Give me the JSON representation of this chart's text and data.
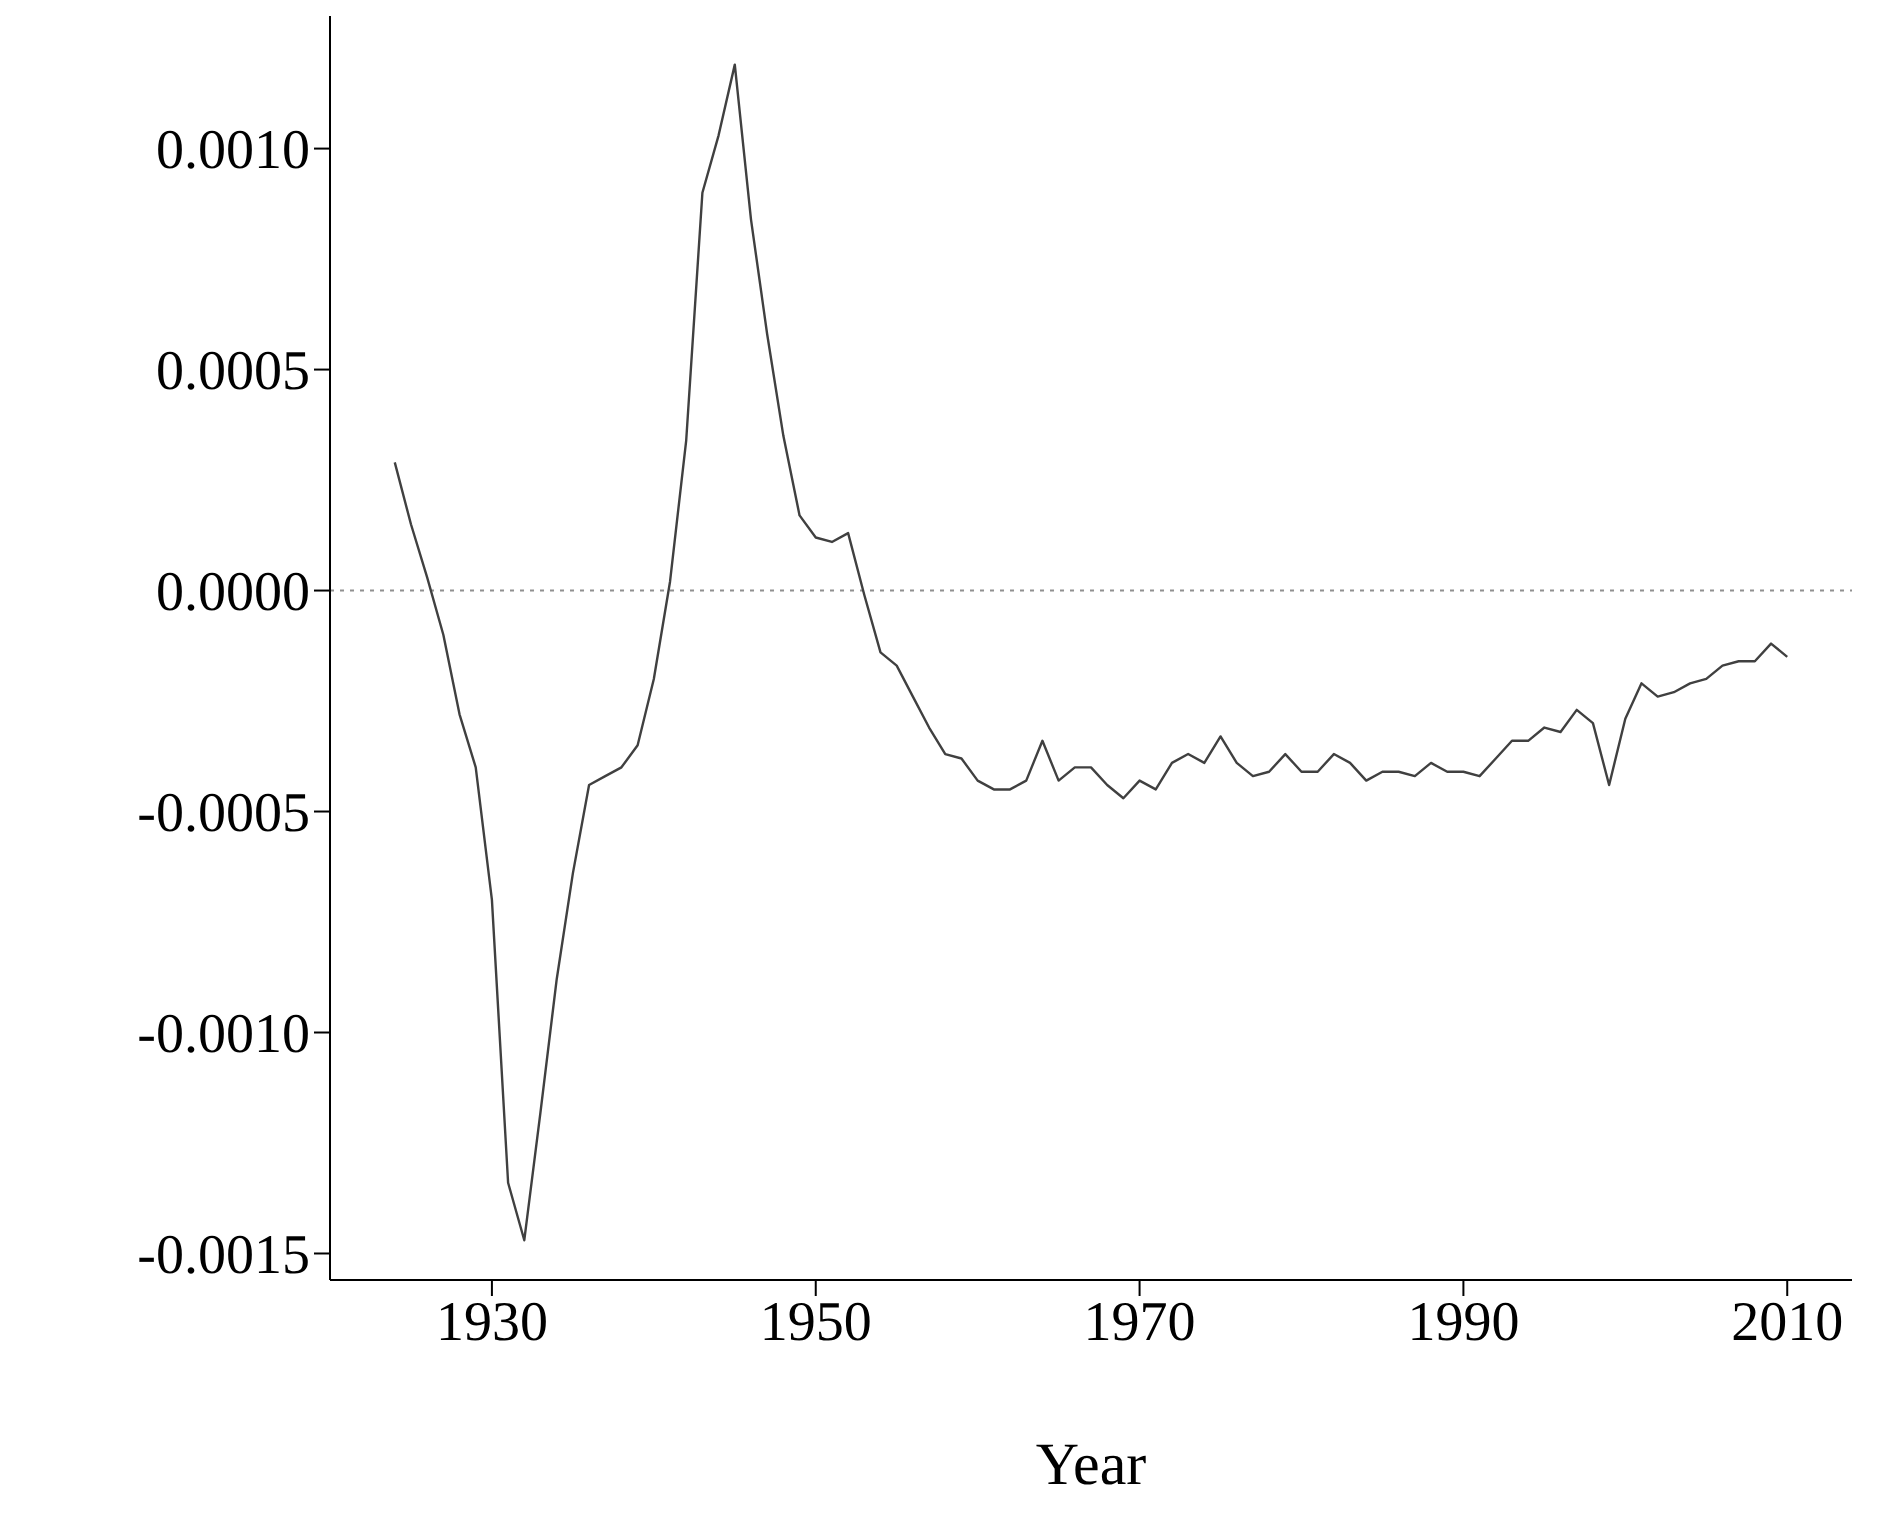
{
  "chart_data": {
    "type": "line",
    "xlabel": "Year",
    "x": [
      1924,
      1925,
      1926,
      1927,
      1928,
      1929,
      1930,
      1931,
      1932,
      1933,
      1934,
      1935,
      1936,
      1937,
      1938,
      1939,
      1940,
      1941,
      1942,
      1943,
      1944,
      1945,
      1946,
      1947,
      1948,
      1949,
      1950,
      1951,
      1952,
      1953,
      1954,
      1955,
      1956,
      1957,
      1958,
      1959,
      1960,
      1961,
      1962,
      1963,
      1964,
      1965,
      1966,
      1967,
      1968,
      1969,
      1970,
      1971,
      1972,
      1973,
      1974,
      1975,
      1976,
      1977,
      1978,
      1979,
      1980,
      1981,
      1982,
      1983,
      1984,
      1985,
      1986,
      1987,
      1988,
      1989,
      1990,
      1991,
      1992,
      1993,
      1994,
      1995,
      1996,
      1997,
      1998,
      1999,
      2000,
      2001,
      2002,
      2003,
      2004,
      2005,
      2006,
      2007,
      2008,
      2009,
      2010
    ],
    "series": [
      {
        "color": "#404040",
        "values": [
          0.00029,
          0.00015,
          3e-05,
          -0.0001,
          -0.00028,
          -0.0004,
          -0.0007,
          -0.00134,
          -0.00147,
          -0.00118,
          -0.00088,
          -0.00064,
          -0.00044,
          -0.00042,
          -0.0004,
          -0.00035,
          -0.0002,
          2e-05,
          0.00034,
          0.0009,
          0.00103,
          0.00119,
          0.00084,
          0.00058,
          0.00035,
          0.00017,
          0.00012,
          0.00011,
          0.00013,
          -1e-05,
          -0.00014,
          -0.00017,
          -0.00024,
          -0.00031,
          -0.00037,
          -0.00038,
          -0.00043,
          -0.00045,
          -0.00045,
          -0.00043,
          -0.00034,
          -0.00043,
          -0.0004,
          -0.0004,
          -0.00044,
          -0.00047,
          -0.00043,
          -0.00045,
          -0.00039,
          -0.00037,
          -0.00039,
          -0.00033,
          -0.00039,
          -0.00042,
          -0.00041,
          -0.00037,
          -0.00041,
          -0.00041,
          -0.00037,
          -0.00039,
          -0.00043,
          -0.00041,
          -0.00041,
          -0.00042,
          -0.00039,
          -0.00041,
          -0.00041,
          -0.00042,
          -0.00038,
          -0.00034,
          -0.00034,
          -0.00031,
          -0.00032,
          -0.00027,
          -0.0003,
          -0.00044,
          -0.00029,
          -0.00021,
          -0.00024,
          -0.00023,
          -0.00021,
          -0.0002,
          -0.00017,
          -0.00016,
          -0.00016,
          -0.00012,
          -0.00015
        ]
      }
    ],
    "xlim": [
      1920,
      2014
    ],
    "xticks": [
      1930,
      1950,
      1970,
      1990,
      2010
    ],
    "ylim": [
      -0.00156,
      0.0013
    ],
    "yticks": [
      {
        "value": -0.0015,
        "label": "-0.0015"
      },
      {
        "value": -0.001,
        "label": "-0.0010"
      },
      {
        "value": -0.0005,
        "label": "-0.0005"
      },
      {
        "value": 0,
        "label": "0.0000"
      },
      {
        "value": 0.0005,
        "label": "0.0005"
      },
      {
        "value": 0.001,
        "label": "0.0010"
      }
    ],
    "ref_lines": [
      {
        "axis": "y",
        "value": 0,
        "color": "#909090",
        "line_style": "dotted"
      }
    ],
    "grid": false,
    "legend": false,
    "marker": "none",
    "line_style": "solid"
  }
}
